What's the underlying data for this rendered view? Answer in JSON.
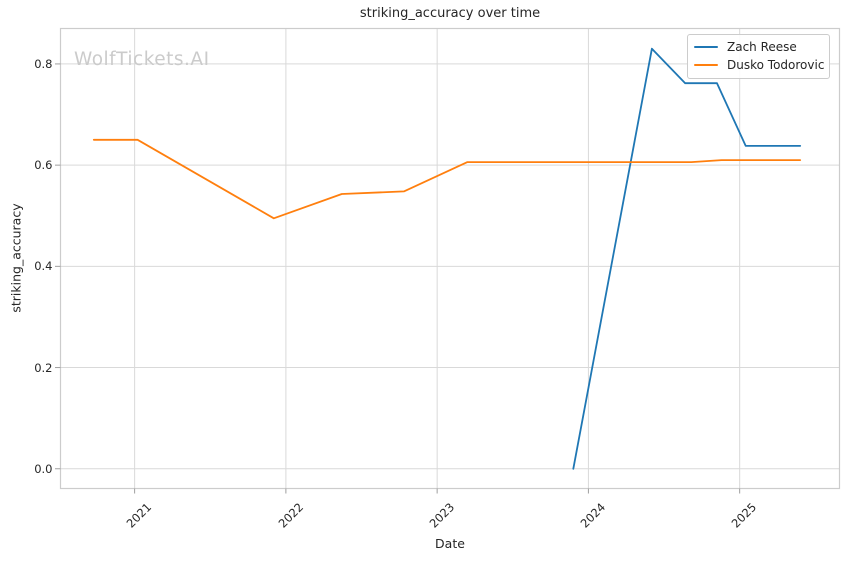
{
  "watermark": "WolfTickets.AI",
  "colors": {
    "grid": "#d9d9d9",
    "spine": "#cccccc",
    "tick_mark": "#9e9e9e",
    "text": "#262626",
    "watermark": "#cbcbcb",
    "background": "#ffffff"
  },
  "chart_data": {
    "type": "line",
    "title": "striking_accuracy over time",
    "xlabel": "Date",
    "ylabel": "striking_accuracy",
    "grid": true,
    "legend_position": "upper right",
    "xlim": [
      2020.51,
      2025.66
    ],
    "ylim": [
      -0.039,
      0.87
    ],
    "x_ticks": {
      "values": [
        2021,
        2022,
        2023,
        2024,
        2025
      ],
      "labels": [
        "2021",
        "2022",
        "2023",
        "2024",
        "2025"
      ],
      "rotation_deg": 45
    },
    "y_ticks": {
      "values": [
        0.0,
        0.2,
        0.4,
        0.6,
        0.8
      ],
      "labels": [
        "0.0",
        "0.2",
        "0.4",
        "0.6",
        "0.8"
      ]
    },
    "series": [
      {
        "name": "Zach Reese",
        "color": "#1f77b4",
        "x": [
          2023.9,
          2024.42,
          2024.64,
          2024.85,
          2025.04,
          2025.4
        ],
        "y": [
          0.0,
          0.83,
          0.762,
          0.762,
          0.638,
          0.638
        ]
      },
      {
        "name": "Dusko Todorovic",
        "color": "#ff7f0e",
        "x": [
          2020.73,
          2021.02,
          2021.92,
          2022.37,
          2022.78,
          2023.2,
          2024.68,
          2024.88,
          2025.4
        ],
        "y": [
          0.65,
          0.65,
          0.495,
          0.543,
          0.548,
          0.606,
          0.606,
          0.61,
          0.61
        ]
      }
    ]
  }
}
